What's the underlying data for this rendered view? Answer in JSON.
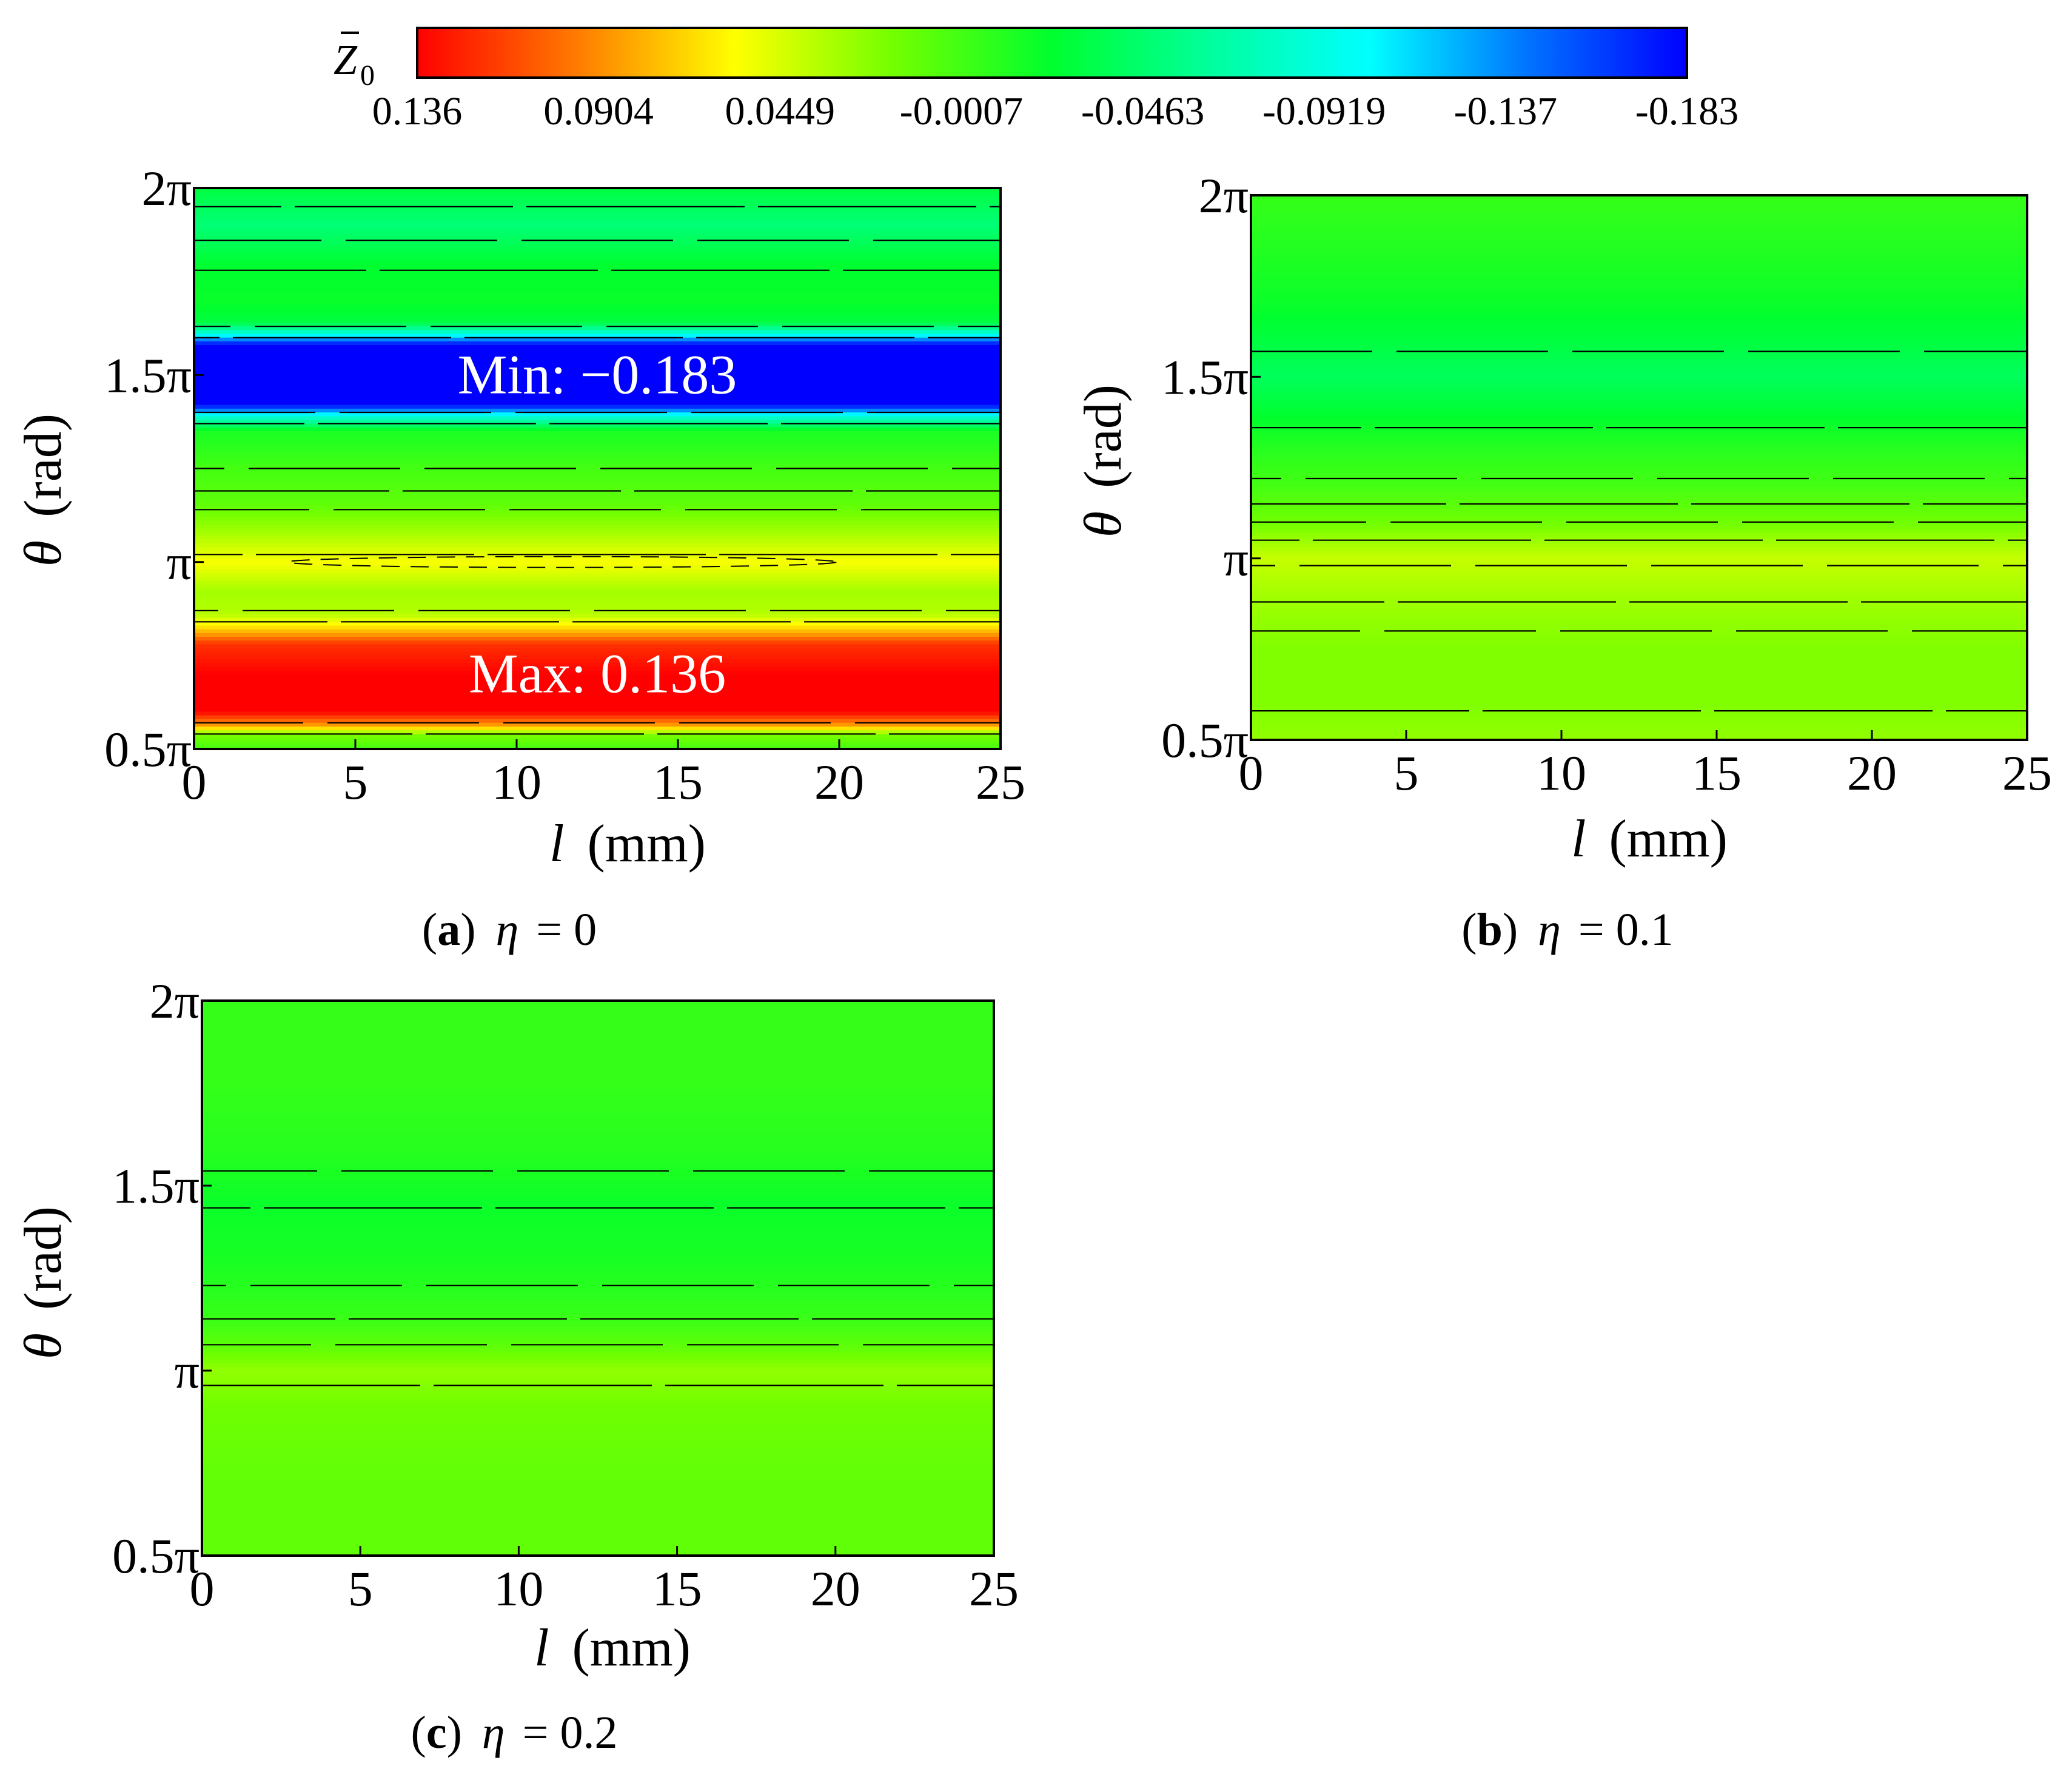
{
  "colorbar": {
    "title": "Z",
    "title_sub": "0",
    "ticks": [
      "0.136",
      "0.0904",
      "0.0449",
      "-0.0007",
      "-0.0463",
      "-0.0919",
      "-0.137",
      "-0.183"
    ],
    "colors": [
      "#ff0000",
      "#ff7a00",
      "#ffff00",
      "#73ff00",
      "#00ff2e",
      "#00ff9c",
      "#00ffff",
      "#0073ff",
      "#0000ff"
    ]
  },
  "chart_data": [
    {
      "type": "heatmap",
      "id": "a",
      "caption_letter": "a",
      "caption_symbol": "η",
      "caption_value": "= 0",
      "xlabel_var": "l",
      "xlabel_unit": "(mm)",
      "ylabel_var": "θ",
      "ylabel_unit": "(rad)",
      "xlim": [
        0,
        25
      ],
      "ylim": [
        0.5,
        2
      ],
      "xticks": [
        "0",
        "5",
        "10",
        "15",
        "20",
        "25"
      ],
      "yticks": [
        "0.5π",
        "π",
        "1.5π",
        "2π"
      ],
      "ytick_values": [
        0.5,
        1,
        1.5,
        2
      ],
      "annotations": [
        {
          "text": "Min: −0.183",
          "theta": 1.5
        },
        {
          "text": "Max: 0.136",
          "theta": 0.7
        }
      ],
      "profile": [
        [
          0.5,
          0.0
        ],
        [
          0.54,
          0.02
        ],
        [
          0.56,
          0.08
        ],
        [
          0.6,
          0.136
        ],
        [
          0.7,
          0.136
        ],
        [
          0.78,
          0.12
        ],
        [
          0.82,
          0.07
        ],
        [
          0.86,
          0.035
        ],
        [
          0.92,
          0.03
        ],
        [
          1.0,
          0.055
        ],
        [
          1.08,
          0.03
        ],
        [
          1.15,
          0.01
        ],
        [
          1.25,
          0.0
        ],
        [
          1.35,
          -0.015
        ],
        [
          1.39,
          -0.09
        ],
        [
          1.42,
          -0.183
        ],
        [
          1.58,
          -0.183
        ],
        [
          1.61,
          -0.09
        ],
        [
          1.64,
          -0.03
        ],
        [
          1.7,
          -0.02
        ],
        [
          1.8,
          -0.025
        ],
        [
          1.9,
          -0.05
        ],
        [
          2.0,
          -0.03
        ]
      ],
      "contours": [
        0.54,
        0.57,
        0.84,
        0.87,
        1.02,
        1.14,
        1.19,
        1.25,
        1.37,
        1.4,
        1.6,
        1.63,
        1.78,
        1.86,
        1.95
      ]
    },
    {
      "type": "heatmap",
      "id": "b",
      "caption_letter": "b",
      "caption_symbol": "η",
      "caption_value": "= 0.1",
      "xlabel_var": "l",
      "xlabel_unit": "(mm)",
      "ylabel_var": "θ",
      "ylabel_unit": "(rad)",
      "xlim": [
        0,
        25
      ],
      "ylim": [
        0.5,
        2
      ],
      "xticks": [
        "0",
        "5",
        "10",
        "15",
        "20",
        "25"
      ],
      "yticks": [
        "0.5π",
        "π",
        "1.5π",
        "2π"
      ],
      "ytick_values": [
        0.5,
        1,
        1.5,
        2
      ],
      "annotations": [],
      "profile": [
        [
          0.5,
          0.025
        ],
        [
          0.6,
          0.02
        ],
        [
          0.75,
          0.02
        ],
        [
          0.9,
          0.03
        ],
        [
          1.0,
          0.04
        ],
        [
          1.1,
          0.015
        ],
        [
          1.2,
          0.0
        ],
        [
          1.3,
          -0.01
        ],
        [
          1.5,
          -0.04
        ],
        [
          1.7,
          -0.02
        ],
        [
          1.85,
          -0.012
        ],
        [
          2.0,
          -0.005
        ]
      ],
      "contours": [
        0.58,
        0.8,
        0.88,
        0.98,
        1.05,
        1.1,
        1.15,
        1.22,
        1.36,
        1.57
      ]
    },
    {
      "type": "heatmap",
      "id": "c",
      "caption_letter": "c",
      "caption_symbol": "η",
      "caption_value": "= 0.2",
      "xlabel_var": "l",
      "xlabel_unit": "(mm)",
      "ylabel_var": "θ",
      "ylabel_unit": "(rad)",
      "xlim": [
        0,
        25
      ],
      "ylim": [
        0.5,
        2
      ],
      "xticks": [
        "0",
        "5",
        "10",
        "15",
        "20",
        "25"
      ],
      "yticks": [
        "0.5π",
        "π",
        "1.5π",
        "2π"
      ],
      "ytick_values": [
        0.5,
        1,
        1.5,
        2
      ],
      "annotations": [],
      "profile": [
        [
          0.5,
          0.01
        ],
        [
          0.7,
          0.01
        ],
        [
          0.9,
          0.015
        ],
        [
          1.0,
          0.025
        ],
        [
          1.06,
          0.01
        ],
        [
          1.15,
          -0.005
        ],
        [
          1.3,
          -0.015
        ],
        [
          1.45,
          -0.02
        ],
        [
          1.6,
          -0.01
        ],
        [
          1.8,
          -0.005
        ],
        [
          2.0,
          -0.005
        ]
      ],
      "contours": [
        0.96,
        1.07,
        1.14,
        1.23,
        1.44,
        1.54
      ]
    }
  ]
}
